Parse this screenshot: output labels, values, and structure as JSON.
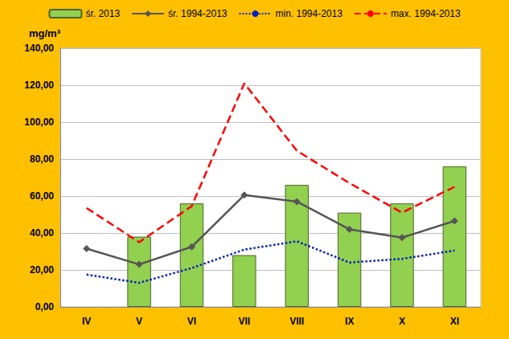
{
  "chart_data": {
    "type": "bar",
    "y_label": "mg/m³",
    "categories": [
      "IV",
      "V",
      "VI",
      "VII",
      "VIII",
      "IX",
      "X",
      "XI"
    ],
    "series": [
      {
        "name": "śr. 2013",
        "type": "bar",
        "color": "#92d050",
        "values": [
          null,
          38,
          56,
          28,
          66,
          51,
          56,
          76
        ]
      },
      {
        "name": "śr. 1994-2013",
        "type": "line",
        "color": "#555555",
        "marker": "diamond",
        "line_style": "solid",
        "values": [
          31.5,
          23,
          32.5,
          60.5,
          57,
          42,
          37.5,
          46.5
        ]
      },
      {
        "name": "min. 1994-2013",
        "type": "line",
        "color": "#0020c0",
        "marker": "none",
        "line_style": "dotted",
        "values": [
          17.5,
          13,
          21,
          31,
          35.5,
          24,
          26,
          30.5
        ]
      },
      {
        "name": "max. 1994-2013",
        "type": "line",
        "color": "#ff0000",
        "marker": "none",
        "line_style": "dashed",
        "values": [
          53.5,
          35,
          54.5,
          121,
          84.5,
          67,
          51,
          65
        ]
      }
    ],
    "ylim": [
      0,
      140
    ],
    "yticks": [
      {
        "value": 0,
        "label": "0,00"
      },
      {
        "value": 20,
        "label": "20,00"
      },
      {
        "value": 40,
        "label": "40,00"
      },
      {
        "value": 60,
        "label": "60,00"
      },
      {
        "value": 80,
        "label": "80,00"
      },
      {
        "value": 100,
        "label": "100,00"
      },
      {
        "value": 120,
        "label": "120,00"
      },
      {
        "value": 140,
        "label": "140,00"
      }
    ],
    "grid": true,
    "legend": "top"
  }
}
